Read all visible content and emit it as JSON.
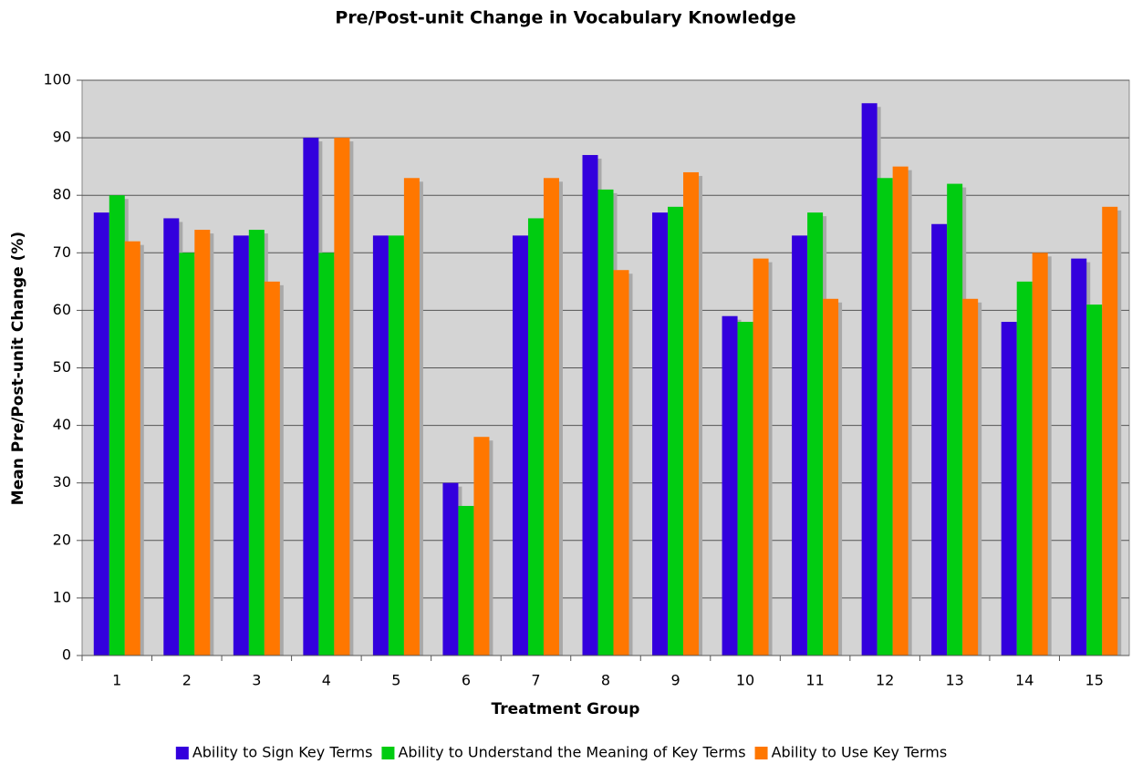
{
  "chart_data": {
    "type": "bar",
    "title": "Pre/Post-unit Change in Vocabulary Knowledge",
    "x_label": "Treatment Group",
    "y_label": "Mean Pre/Post-unit Change (%)",
    "categories": [
      "1",
      "2",
      "3",
      "4",
      "5",
      "6",
      "7",
      "8",
      "9",
      "10",
      "11",
      "12",
      "13",
      "14",
      "15"
    ],
    "series": [
      {
        "name": "Ability to Sign Key Terms",
        "color": "#3300dd",
        "values": [
          77,
          76,
          73,
          90,
          73,
          30,
          73,
          87,
          77,
          59,
          73,
          96,
          75,
          58,
          69
        ]
      },
      {
        "name": "Ability to Understand the Meaning of Key Terms",
        "color": "#00cc11",
        "values": [
          80,
          70,
          74,
          70,
          73,
          26,
          76,
          81,
          78,
          58,
          77,
          83,
          82,
          65,
          61
        ]
      },
      {
        "name": "Ability to Use Key Terms",
        "color": "#ff7700",
        "values": [
          72,
          74,
          65,
          90,
          83,
          38,
          83,
          67,
          84,
          69,
          62,
          85,
          62,
          70,
          78
        ]
      }
    ],
    "ylim": [
      0,
      100
    ],
    "yticks": [
      0,
      10,
      20,
      30,
      40,
      50,
      60,
      70,
      80,
      90,
      100
    ],
    "grid": true,
    "legend": "bottom"
  }
}
